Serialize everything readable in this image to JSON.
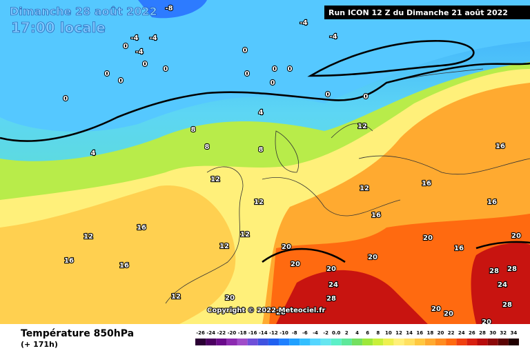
{
  "header": {
    "date": "Dimanche 28 août 2022",
    "time": "17:00 locale",
    "run": "Run ICON 12 Z du Dimanche 21 août 2022"
  },
  "footer": {
    "title": "Température 850hPa",
    "lead": "(+ 171h)",
    "copyright": "Copyright © 2022 Meteociel.fr"
  },
  "scale": {
    "ticks": [
      -26,
      -24,
      -22,
      -20,
      -18,
      -16,
      -14,
      -12,
      -10,
      -8,
      -6,
      -4,
      -2,
      {
        "value": 0,
        "label": "0.0"
      },
      2,
      4,
      6,
      8,
      10,
      12,
      14,
      16,
      18,
      20,
      22,
      24,
      26,
      28,
      30,
      32,
      34
    ],
    "colors": [
      "#2a0033",
      "#4b0060",
      "#6a0a8a",
      "#8c2ab0",
      "#a04cc8",
      "#6f4fd8",
      "#3f52e0",
      "#2060f0",
      "#1f80ff",
      "#20a0ff",
      "#33bfff",
      "#55d6ff",
      "#66e6f0",
      "#5cf0c8",
      "#5ee89a",
      "#74e060",
      "#9de83a",
      "#c8f03a",
      "#eef050",
      "#fff07a",
      "#ffe060",
      "#ffc840",
      "#ffaa30",
      "#ff8c20",
      "#ff6a10",
      "#f04010",
      "#d82010",
      "#b80c0c",
      "#8c0808",
      "#5a0404",
      "#200000"
    ]
  },
  "map": {
    "labels": [
      -8,
      -4,
      -4,
      -4,
      -4,
      -4,
      0,
      0,
      0,
      0,
      0,
      0,
      0,
      0,
      0,
      0,
      0,
      0,
      0,
      4,
      4,
      8,
      8,
      8,
      12,
      12,
      12,
      12,
      12,
      12,
      12,
      12,
      16,
      16,
      16,
      16,
      16,
      16,
      16,
      16,
      20,
      20,
      20,
      20,
      20,
      20,
      20,
      20,
      24,
      24,
      28,
      28,
      28,
      28,
      28,
      20,
      20
    ]
  }
}
